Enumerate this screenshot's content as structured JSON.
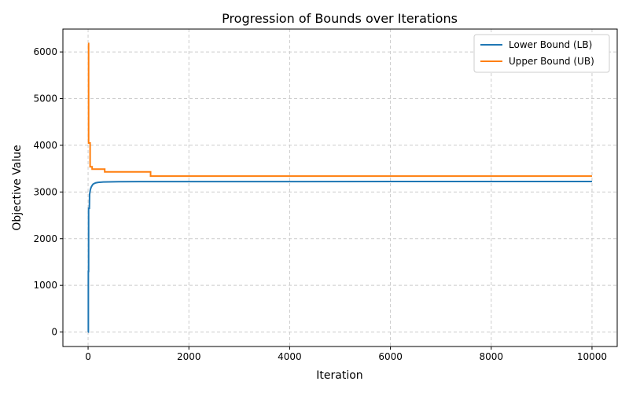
{
  "chart_data": {
    "type": "line",
    "title": "Progression of Bounds over Iterations",
    "x_label": "Iteration",
    "y_label": "Objective Value",
    "series": [
      {
        "name": "Lower Bound (LB)",
        "color": "#1f77b4",
        "x": [
          0,
          5,
          5,
          10,
          10,
          25,
          30,
          45,
          60,
          80,
          100,
          150,
          200,
          300,
          600,
          1000,
          10000
        ],
        "values": [
          0,
          0,
          1300,
          1300,
          2650,
          2650,
          2950,
          3050,
          3100,
          3140,
          3170,
          3195,
          3205,
          3215,
          3220,
          3222,
          3225
        ]
      },
      {
        "name": "Upper Bound (UB)",
        "color": "#ff7f0e",
        "x": [
          0,
          10,
          10,
          40,
          40,
          80,
          80,
          330,
          330,
          1240,
          1240,
          10000
        ],
        "values": [
          6180,
          6180,
          4050,
          4050,
          3540,
          3540,
          3490,
          3490,
          3430,
          3430,
          3340,
          3340
        ]
      }
    ],
    "xlim": [
      -500,
      10500
    ],
    "xticks": [
      0,
      2000,
      4000,
      6000,
      8000,
      10000
    ],
    "ylim": [
      -310,
      6490
    ],
    "yticks": [
      0,
      1000,
      2000,
      3000,
      4000,
      5000,
      6000
    ],
    "grid": true,
    "legend": "upper-right"
  }
}
